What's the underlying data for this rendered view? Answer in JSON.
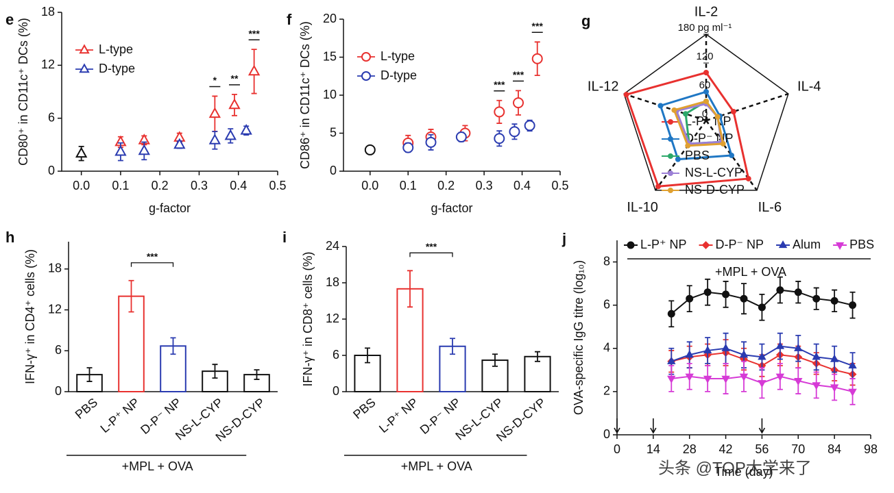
{
  "chart_data": [
    {
      "type": "scatter",
      "panel": "e",
      "ylabel": "CD80⁺ in CD11c⁺ DCs (%)",
      "xlabel": "g-factor",
      "xlim": [
        -0.05,
        0.5
      ],
      "xticks": [
        {
          "value": 0,
          "label": "0.0"
        },
        0.1,
        0.2,
        0.3,
        0.4,
        0.5
      ],
      "ylim": [
        0,
        18
      ],
      "yticks": [
        0,
        6,
        12,
        18
      ],
      "legend": "upper left",
      "series": [
        {
          "color": "#111111",
          "marker": "triangle",
          "x": [
            0
          ],
          "values": [
            2
          ],
          "errors": [
            0.8
          ]
        },
        {
          "name": "L-type",
          "color": "#e8312f",
          "marker": "triangle",
          "x": [
            0.1,
            0.16,
            0.25,
            0.34,
            0.39,
            0.44
          ],
          "values": [
            3.3,
            3.5,
            3.8,
            6.5,
            7.5,
            11.3
          ],
          "errors": [
            0.6,
            0.5,
            0.5,
            2,
            1.2,
            2.5
          ],
          "significance": [
            null,
            null,
            null,
            "*",
            "**",
            "***"
          ]
        },
        {
          "name": "D-type",
          "color": "#2a3bb0",
          "marker": "triangle",
          "x": [
            0.1,
            0.16,
            0.25,
            0.34,
            0.38,
            0.42
          ],
          "values": [
            2.2,
            2.3,
            3.0,
            3.5,
            4.0,
            4.6
          ],
          "errors": [
            1,
            1,
            0.4,
            1,
            0.8,
            0.5
          ]
        }
      ]
    },
    {
      "type": "scatter",
      "panel": "f",
      "ylabel": "CD86⁺ in CD11c⁺ DCs (%)",
      "xlabel": "g-factor",
      "xlim": [
        -0.07,
        0.5
      ],
      "xticks": [
        {
          "value": 0,
          "label": "0.0"
        },
        0.1,
        0.2,
        0.3,
        0.4,
        0.5
      ],
      "ylim": [
        0,
        20
      ],
      "yticks": [
        0,
        5,
        10,
        15,
        20
      ],
      "legend": "upper left",
      "series": [
        {
          "color": "#111111",
          "marker": "circle",
          "x": [
            0
          ],
          "values": [
            2.8
          ],
          "errors": [
            0.4
          ]
        },
        {
          "name": "L-type",
          "color": "#e8312f",
          "marker": "circle",
          "x": [
            0.1,
            0.16,
            0.25,
            0.34,
            0.39,
            0.44
          ],
          "values": [
            3.7,
            4.5,
            5.0,
            7.8,
            9.0,
            14.8
          ],
          "errors": [
            1,
            1,
            1,
            1.5,
            1.6,
            2.2
          ],
          "significance": [
            null,
            null,
            null,
            "***",
            "***",
            "***"
          ]
        },
        {
          "name": "D-type",
          "color": "#2a3bb0",
          "marker": "circle",
          "x": [
            0.1,
            0.16,
            0.24,
            0.34,
            0.38,
            0.42
          ],
          "values": [
            3.1,
            3.8,
            4.5,
            4.3,
            5.2,
            6.0
          ],
          "errors": [
            0.6,
            1,
            0.6,
            1,
            1,
            0.7
          ]
        }
      ]
    },
    {
      "type": "radar",
      "panel": "g",
      "axes": [
        "IL-2",
        "IL-4",
        "IL-6",
        "IL-10",
        "IL-12"
      ],
      "rlim": [
        0,
        180
      ],
      "rticks": [
        0,
        60,
        120,
        {
          "value": 180,
          "label": "180 pg ml⁻¹"
        }
      ],
      "legend": "right",
      "series": [
        {
          "name": "L-P⁺ NP",
          "color": "#e8312f",
          "values": [
            100,
            60,
            150,
            170,
            175
          ]
        },
        {
          "name": "D-P⁻ NP",
          "color": "#1f77c4",
          "values": [
            60,
            30,
            90,
            100,
            100
          ]
        },
        {
          "name": "PBS",
          "color": "#2ca86a",
          "values": [
            40,
            25,
            55,
            60,
            45
          ]
        },
        {
          "name": "NS-L-CYP",
          "color": "#9b7fd6",
          "values": [
            35,
            25,
            55,
            60,
            65
          ]
        },
        {
          "name": "NS-D-CYP",
          "color": "#e0a030",
          "values": [
            40,
            25,
            60,
            65,
            70
          ]
        }
      ]
    },
    {
      "type": "bar",
      "panel": "h",
      "ylabel": "IFN-γ⁺ in CD4⁺ cells (%)",
      "footer": "+MPL + OVA",
      "significance": "***",
      "categories": [
        "PBS",
        "L-P⁺ NP",
        "D-P⁻ NP",
        "NS-L-CYP",
        "NS-D-CYP"
      ],
      "values": [
        2.5,
        14,
        6.7,
        3.0,
        2.5
      ],
      "errors": [
        1,
        2.3,
        1.2,
        1,
        0.7
      ],
      "colors": [
        "#111111",
        "#e8312f",
        "#2a3bb0",
        "#111111",
        "#111111"
      ],
      "ylim": [
        0,
        22
      ],
      "yticks": [
        0,
        6,
        12,
        18
      ]
    },
    {
      "type": "bar",
      "panel": "i",
      "ylabel": "IFN-γ⁺ in CD8⁺ cells (%)",
      "footer": "+MPL + OVA",
      "significance": "***",
      "categories": [
        "PBS",
        "L-P⁺ NP",
        "D-P⁻ NP",
        "NS-L-CYP",
        "NS-D-CYP"
      ],
      "values": [
        6,
        17,
        7.5,
        5.2,
        5.8
      ],
      "errors": [
        1.2,
        3,
        1.3,
        1,
        0.8
      ],
      "colors": [
        "#111111",
        "#e8312f",
        "#2a3bb0",
        "#111111",
        "#111111"
      ],
      "ylim": [
        0,
        24
      ],
      "yticks": [
        0,
        6,
        12,
        18,
        24
      ]
    },
    {
      "type": "line",
      "panel": "j",
      "ylabel": "OVA-specific IgG titre (log₁₀)",
      "xlabel": "Time (day)",
      "header": "+MPL + OVA",
      "watermark": "头条 @TOP大学来了",
      "injection_days": [
        0,
        14,
        56
      ],
      "legend": "top",
      "xlim": [
        0,
        98
      ],
      "xticks": [
        0,
        14,
        28,
        42,
        56,
        70,
        84,
        98
      ],
      "ylim": [
        0,
        9
      ],
      "yticks": [
        0,
        2,
        4,
        6,
        8
      ],
      "x": [
        21,
        28,
        35,
        42,
        49,
        56,
        63,
        70,
        77,
        84,
        91
      ],
      "series": [
        {
          "name": "L-P⁺ NP",
          "color": "#111111",
          "marker": "circle",
          "values": [
            5.6,
            6.3,
            6.6,
            6.5,
            6.3,
            5.9,
            6.7,
            6.6,
            6.3,
            6.2,
            6.0
          ],
          "errors": [
            0.6,
            0.6,
            0.6,
            0.6,
            0.7,
            0.6,
            0.6,
            0.5,
            0.5,
            0.5,
            0.6
          ]
        },
        {
          "name": "D-P⁻ NP",
          "color": "#e8312f",
          "marker": "diamond",
          "values": [
            3.4,
            3.6,
            3.7,
            3.8,
            3.5,
            3.2,
            3.7,
            3.6,
            3.3,
            3.0,
            2.8
          ],
          "errors": [
            0.5,
            0.5,
            0.5,
            0.6,
            0.5,
            0.5,
            0.5,
            0.5,
            0.5,
            0.5,
            0.5
          ]
        },
        {
          "name": "Alum",
          "color": "#2a3bb0",
          "marker": "triangle",
          "values": [
            3.4,
            3.7,
            3.9,
            4.0,
            3.7,
            3.6,
            4.1,
            4.0,
            3.6,
            3.5,
            3.2
          ],
          "errors": [
            0.6,
            0.6,
            0.6,
            0.7,
            0.6,
            0.6,
            0.6,
            0.6,
            0.6,
            0.6,
            0.6
          ]
        },
        {
          "name": "PBS",
          "color": "#d63ad6",
          "marker": "triangle-down",
          "values": [
            2.6,
            2.7,
            2.6,
            2.6,
            2.7,
            2.4,
            2.7,
            2.5,
            2.3,
            2.2,
            2.0
          ],
          "errors": [
            0.6,
            0.6,
            0.6,
            0.7,
            0.7,
            0.7,
            0.6,
            0.6,
            0.6,
            0.6,
            0.6
          ]
        }
      ]
    }
  ]
}
